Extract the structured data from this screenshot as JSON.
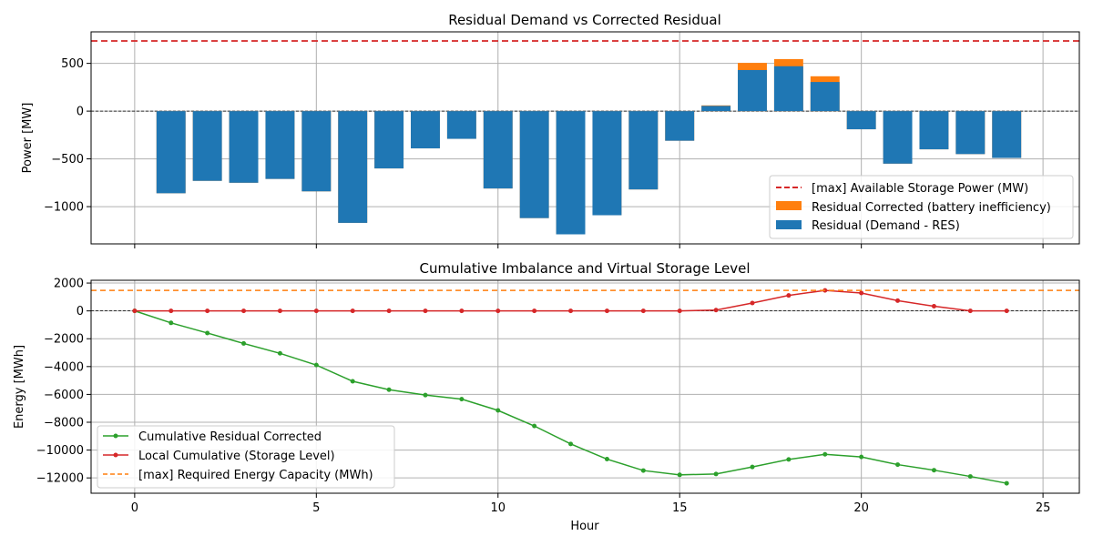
{
  "chart_data": [
    {
      "type": "bar",
      "title": "Residual Demand vs Corrected Residual",
      "xlabel": "",
      "ylabel": "Power [MW]",
      "xlim": [
        -1.2,
        26.0
      ],
      "ylim": [
        -1390,
        830
      ],
      "x_ticks": [
        0,
        5,
        10,
        15,
        20,
        25
      ],
      "y_ticks": [
        -1000,
        -500,
        0,
        500
      ],
      "y_tick_labels": [
        "−1000",
        "−500",
        "0",
        "500"
      ],
      "grid": true,
      "legend_position": "lower-right",
      "hours": [
        1,
        2,
        3,
        4,
        5,
        6,
        7,
        8,
        9,
        10,
        11,
        12,
        13,
        14,
        15,
        16,
        17,
        18,
        19,
        20,
        21,
        22,
        23,
        24
      ],
      "series": [
        {
          "name": "Residual Corrected (battery inefficiency)",
          "color": "#ff7f0e",
          "values": [
            -860,
            -730,
            -750,
            -710,
            -840,
            -1170,
            -600,
            -390,
            -290,
            -810,
            -1120,
            -1290,
            -1090,
            -820,
            -310,
            60,
            505,
            545,
            365,
            -190,
            -550,
            -400,
            -450,
            -490
          ]
        },
        {
          "name": "Residual (Demand - RES)",
          "color": "#1f77b4",
          "values": [
            -860,
            -730,
            -750,
            -710,
            -840,
            -1170,
            -600,
            -390,
            -290,
            -810,
            -1120,
            -1290,
            -1090,
            -820,
            -310,
            55,
            430,
            470,
            305,
            -190,
            -550,
            -400,
            -450,
            -490
          ]
        }
      ],
      "hlines": [
        {
          "name": "[max] Available Storage Power (MW)",
          "y": 735,
          "color": "#d62728",
          "style": "dashed"
        }
      ]
    },
    {
      "type": "line",
      "title": "Cumulative Imbalance and Virtual Storage Level",
      "xlabel": "Hour",
      "ylabel": "Energy [MWh]",
      "xlim": [
        -1.2,
        26.0
      ],
      "ylim": [
        -13100,
        2200
      ],
      "x_ticks": [
        0,
        5,
        10,
        15,
        20,
        25
      ],
      "x_tick_labels": [
        "0",
        "5",
        "10",
        "15",
        "20",
        "25"
      ],
      "y_ticks": [
        -12000,
        -10000,
        -8000,
        -6000,
        -4000,
        -2000,
        0,
        2000
      ],
      "y_tick_labels": [
        "−12000",
        "−10000",
        "−8000",
        "−6000",
        "−4000",
        "−2000",
        "0",
        "2000"
      ],
      "grid": true,
      "legend_position": "lower-left",
      "x": [
        0,
        1,
        2,
        3,
        4,
        5,
        6,
        7,
        8,
        9,
        10,
        11,
        12,
        13,
        14,
        15,
        16,
        17,
        18,
        19,
        20,
        21,
        22,
        23,
        24
      ],
      "series": [
        {
          "name": "Cumulative Residual Corrected",
          "color": "#2ca02c",
          "values": [
            0,
            -860,
            -1590,
            -2340,
            -3050,
            -3890,
            -5060,
            -5660,
            -6050,
            -6340,
            -7150,
            -8270,
            -9560,
            -10650,
            -11470,
            -11780,
            -11720,
            -11215,
            -10670,
            -10305,
            -10495,
            -11045,
            -11445,
            -11895,
            -12385
          ]
        },
        {
          "name": "Local Cumulative (Storage Level)",
          "color": "#d62728",
          "values": [
            0,
            0,
            0,
            0,
            0,
            0,
            0,
            0,
            0,
            0,
            0,
            0,
            0,
            0,
            0,
            0,
            60,
            565,
            1110,
            1475,
            1285,
            735,
            335,
            0,
            0
          ]
        }
      ],
      "hlines": [
        {
          "name": "[max] Required Energy Capacity (MWh)",
          "y": 1475,
          "color": "#ff7f0e",
          "style": "dashed"
        }
      ]
    }
  ]
}
